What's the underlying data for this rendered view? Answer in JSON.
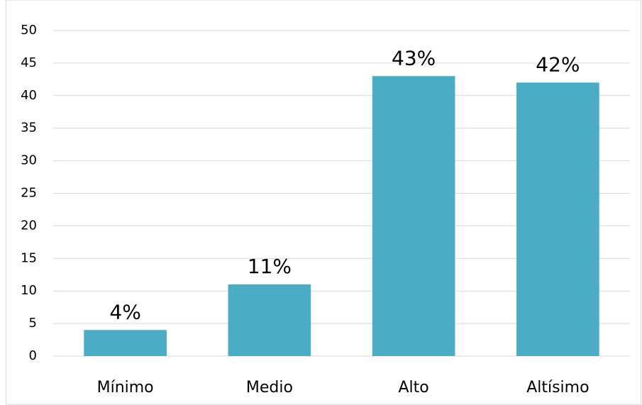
{
  "chart_data": {
    "type": "bar",
    "categories": [
      "Mínimo",
      "Medio",
      "Alto",
      "Altísimo"
    ],
    "values": [
      4,
      11,
      43,
      42
    ],
    "value_labels": [
      "4%",
      "11%",
      "43%",
      "42%"
    ],
    "color": "#4bacc6",
    "ylim": [
      0,
      50
    ],
    "yticks": [
      0,
      5,
      10,
      15,
      20,
      25,
      30,
      35,
      40,
      45,
      50
    ],
    "grid": true
  }
}
